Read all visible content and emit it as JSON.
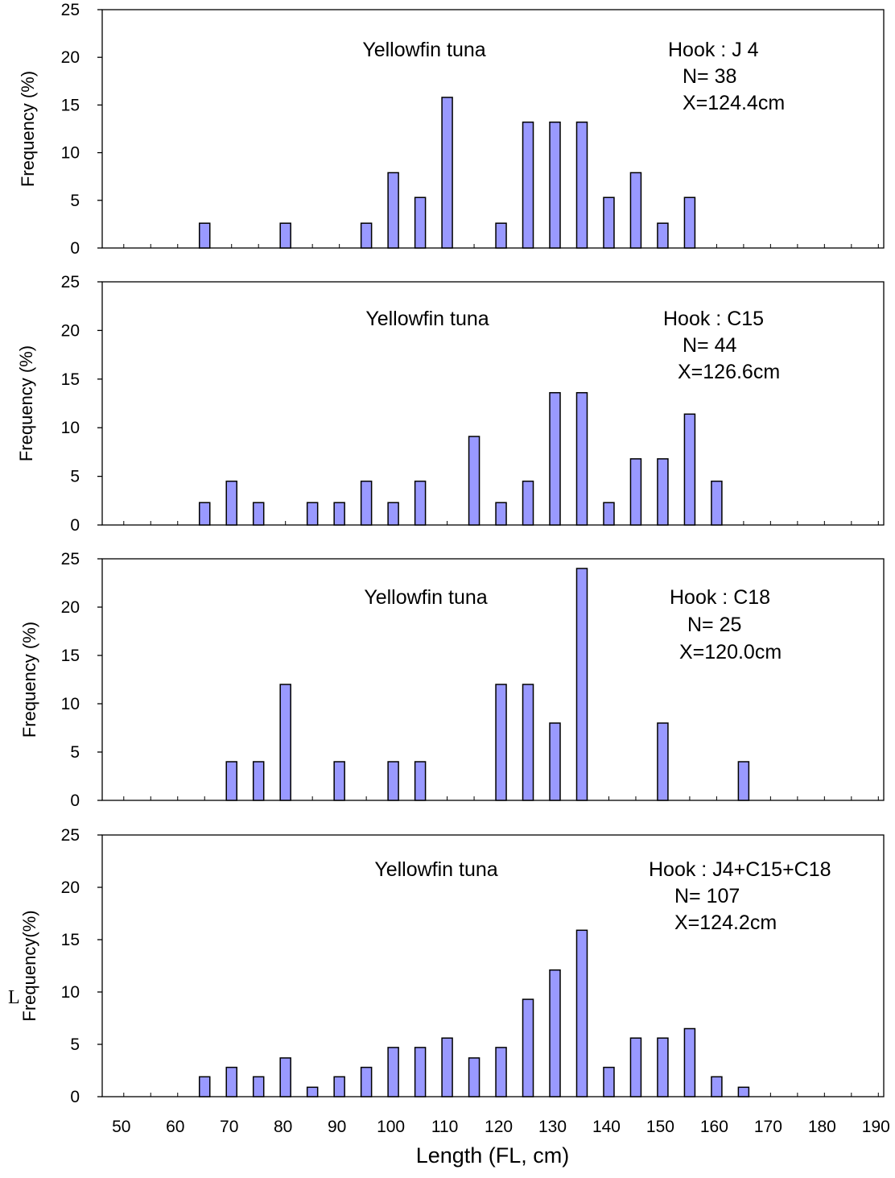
{
  "x_tick_labels": [
    "50",
    "60",
    "70",
    "80",
    "90",
    "100",
    "110",
    "120",
    "130",
    "140",
    "150",
    "160",
    "170",
    "180",
    "190"
  ],
  "x_axis_label": "Length (FL, cm)",
  "stray_glyph": "L",
  "colors": {
    "bar_fill": "#9999ff",
    "bar_stroke": "#000000",
    "axis": "#000000"
  },
  "chart_data": [
    {
      "type": "bar",
      "title": "Yellowfin tuna",
      "annotations": [
        "Hook : J 4",
        "N= 38",
        "X=124.4cm"
      ],
      "ylabel": "Frequency (%)",
      "ylim": [
        0,
        25
      ],
      "yticks": [
        "0",
        "5",
        "10",
        "15",
        "20",
        "25"
      ],
      "xlim": [
        50,
        190
      ],
      "x": [
        65,
        80,
        95,
        100,
        105,
        110,
        120,
        125,
        130,
        135,
        140,
        145,
        150,
        155
      ],
      "values": [
        2.6,
        2.6,
        2.6,
        7.9,
        5.3,
        15.8,
        2.6,
        13.2,
        13.2,
        13.2,
        5.3,
        7.9,
        2.6,
        5.3
      ]
    },
    {
      "type": "bar",
      "title": "Yellowfin tuna",
      "annotations": [
        "Hook : C15",
        "N= 44",
        "X=126.6cm"
      ],
      "ylabel": "Frequency (%)",
      "ylim": [
        0,
        25
      ],
      "yticks": [
        "0",
        "5",
        "10",
        "15",
        "20",
        "25"
      ],
      "xlim": [
        50,
        190
      ],
      "x": [
        65,
        70,
        75,
        85,
        90,
        95,
        100,
        105,
        115,
        120,
        125,
        130,
        135,
        140,
        145,
        150,
        155,
        160
      ],
      "values": [
        2.3,
        4.5,
        2.3,
        2.3,
        2.3,
        4.5,
        2.3,
        4.5,
        9.1,
        2.3,
        4.5,
        13.6,
        13.6,
        2.3,
        6.8,
        6.8,
        11.4,
        4.5
      ]
    },
    {
      "type": "bar",
      "title": "Yellowfin tuna",
      "annotations": [
        "Hook : C18",
        "N= 25",
        "X=120.0cm"
      ],
      "ylabel": "Frequency (%)",
      "ylim": [
        0,
        25
      ],
      "yticks": [
        "0",
        "5",
        "10",
        "15",
        "20",
        "25"
      ],
      "xlim": [
        50,
        190
      ],
      "x": [
        70,
        75,
        80,
        90,
        100,
        105,
        120,
        125,
        130,
        135,
        150,
        165
      ],
      "values": [
        4,
        4,
        12,
        4,
        4,
        4,
        12,
        12,
        8,
        24,
        8,
        4
      ]
    },
    {
      "type": "bar",
      "title": "Yellowfin tuna",
      "annotations": [
        "Hook : J4+C15+C18",
        "N= 107",
        "X=124.2cm"
      ],
      "ylabel": "Frequency(%)",
      "ylim": [
        0,
        25
      ],
      "yticks": [
        "0",
        "5",
        "10",
        "15",
        "20",
        "25"
      ],
      "xlim": [
        50,
        190
      ],
      "x": [
        65,
        70,
        75,
        80,
        85,
        90,
        95,
        100,
        105,
        110,
        115,
        120,
        125,
        130,
        135,
        140,
        145,
        150,
        155,
        160,
        165
      ],
      "values": [
        1.9,
        2.8,
        1.9,
        3.7,
        0.9,
        1.9,
        2.8,
        4.7,
        4.7,
        5.6,
        3.7,
        4.7,
        9.3,
        12.1,
        15.9,
        2.8,
        5.6,
        5.6,
        6.5,
        1.9,
        0.9
      ]
    }
  ]
}
